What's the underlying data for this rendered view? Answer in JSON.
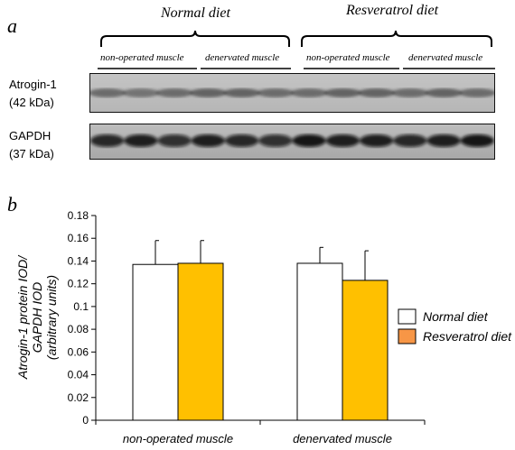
{
  "panel_a": {
    "letter": "a",
    "groups": [
      {
        "label": "Normal diet"
      },
      {
        "label": "Resveratrol diet"
      }
    ],
    "subgroups": [
      "non-operated muscle",
      "denervated muscle",
      "non-operated muscle",
      "denervated muscle"
    ],
    "blots": [
      {
        "name": "Atrogin-1",
        "size": "(42 kDa)",
        "lanes": 12
      },
      {
        "name": "GAPDH",
        "size": "(37 kDa)",
        "lanes": 12
      }
    ]
  },
  "panel_b": {
    "letter": "b"
  },
  "chart_data": {
    "type": "bar",
    "title": "",
    "ylabel_lines": [
      "Atrogin-1 protein  IOD/",
      "GAPDH IOD",
      "(arbitrary units)"
    ],
    "xlabel": "",
    "categories": [
      "non-operated muscle",
      "denervated muscle"
    ],
    "ylim": [
      0,
      0.18
    ],
    "yticks": [
      "0",
      "0.02",
      "0.04",
      "0.06",
      "0.08",
      "0.1",
      "0.12",
      "0.14",
      "0.16",
      "0.18"
    ],
    "series": [
      {
        "name": "Normal diet",
        "values": [
          0.137,
          0.138
        ],
        "errors": [
          0.021,
          0.014
        ],
        "color": "#ffffff"
      },
      {
        "name": "Resveratrol diet",
        "values": [
          0.138,
          0.123
        ],
        "errors": [
          0.02,
          0.026
        ],
        "color": "#ffc000"
      }
    ],
    "legend_position": "right",
    "legend_swatch_colors": [
      "#ffffff",
      "#f79646"
    ],
    "grid": false
  }
}
